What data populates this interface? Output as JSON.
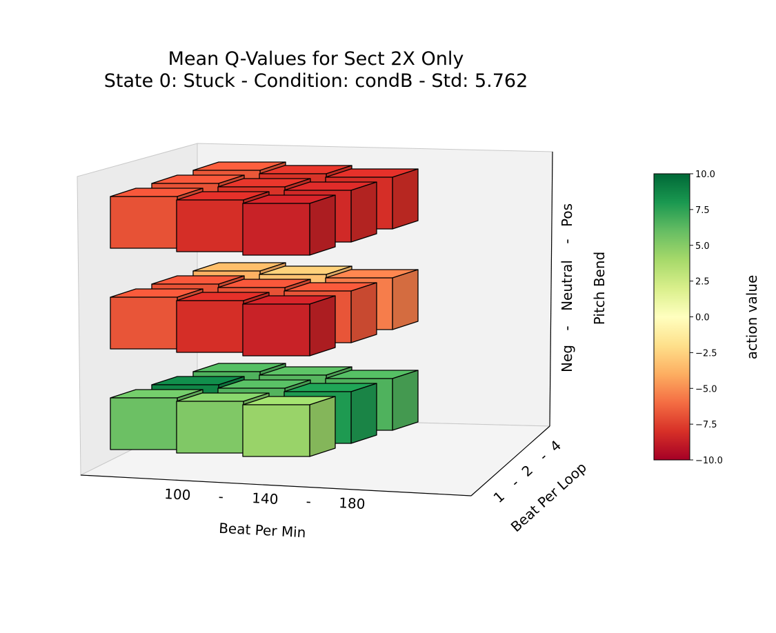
{
  "chart_data": {
    "type": "3d-bar-cube",
    "title": {
      "line1": "Mean Q-Values for Sect 2X Only",
      "line2": "State 0: Stuck  -  Condition: condB  -  Std: 5.762"
    },
    "x_axis": {
      "label": "Beat Per Min",
      "ticks": [
        "100",
        "-",
        "140",
        "-",
        "180"
      ],
      "categories": [
        "100",
        "140",
        "180"
      ]
    },
    "y_axis": {
      "label": "Beat Per Loop",
      "ticks": [
        "1",
        "-",
        "2",
        "-",
        "4"
      ],
      "categories": [
        "1",
        "2",
        "4"
      ]
    },
    "z_axis": {
      "label": "Pitch Bend",
      "ticks": [
        "Neg",
        "-",
        "Neutral",
        "-",
        "Pos"
      ],
      "categories": [
        "Neg",
        "Neutral",
        "Pos"
      ]
    },
    "colorbar": {
      "label": "action value",
      "range": [
        -10,
        10
      ],
      "ticks": [
        "10.0",
        "7.5",
        "5.0",
        "2.5",
        "0.0",
        "−2.5",
        "−5.0",
        "−7.5",
        "−10.0"
      ],
      "colormap": "RdYlGn"
    },
    "values": [
      {
        "bpm": "100",
        "loop": "1",
        "pitch": "Neg",
        "value": 5.8
      },
      {
        "bpm": "100",
        "loop": "2",
        "pitch": "Neg",
        "value": 8.8
      },
      {
        "bpm": "100",
        "loop": "4",
        "pitch": "Neg",
        "value": 6.6
      },
      {
        "bpm": "140",
        "loop": "1",
        "pitch": "Neg",
        "value": 5.2
      },
      {
        "bpm": "140",
        "loop": "2",
        "pitch": "Neg",
        "value": 6.5
      },
      {
        "bpm": "140",
        "loop": "4",
        "pitch": "Neg",
        "value": 6.4
      },
      {
        "bpm": "180",
        "loop": "1",
        "pitch": "Neg",
        "value": 4.4
      },
      {
        "bpm": "180",
        "loop": "2",
        "pitch": "Neg",
        "value": 7.9
      },
      {
        "bpm": "180",
        "loop": "4",
        "pitch": "Neg",
        "value": 6.6
      },
      {
        "bpm": "100",
        "loop": "1",
        "pitch": "Neutral",
        "value": -6.8
      },
      {
        "bpm": "100",
        "loop": "2",
        "pitch": "Neutral",
        "value": -6.9
      },
      {
        "bpm": "100",
        "loop": "4",
        "pitch": "Neutral",
        "value": -3.9
      },
      {
        "bpm": "140",
        "loop": "1",
        "pitch": "Neutral",
        "value": -8.1
      },
      {
        "bpm": "140",
        "loop": "2",
        "pitch": "Neutral",
        "value": -6.9
      },
      {
        "bpm": "140",
        "loop": "4",
        "pitch": "Neutral",
        "value": -3.2
      },
      {
        "bpm": "180",
        "loop": "1",
        "pitch": "Neutral",
        "value": -8.6
      },
      {
        "bpm": "180",
        "loop": "2",
        "pitch": "Neutral",
        "value": -6.8
      },
      {
        "bpm": "180",
        "loop": "4",
        "pitch": "Neutral",
        "value": -5.5
      },
      {
        "bpm": "100",
        "loop": "1",
        "pitch": "Pos",
        "value": -6.9
      },
      {
        "bpm": "100",
        "loop": "2",
        "pitch": "Pos",
        "value": -6.9
      },
      {
        "bpm": "100",
        "loop": "4",
        "pitch": "Pos",
        "value": -6.7
      },
      {
        "bpm": "140",
        "loop": "1",
        "pitch": "Pos",
        "value": -8.1
      },
      {
        "bpm": "140",
        "loop": "2",
        "pitch": "Pos",
        "value": -7.9
      },
      {
        "bpm": "140",
        "loop": "4",
        "pitch": "Pos",
        "value": -7.9
      },
      {
        "bpm": "180",
        "loop": "1",
        "pitch": "Pos",
        "value": -8.6
      },
      {
        "bpm": "180",
        "loop": "2",
        "pitch": "Pos",
        "value": -8.3
      },
      {
        "bpm": "180",
        "loop": "4",
        "pitch": "Pos",
        "value": -8.1
      }
    ],
    "pane_color": "#f2f2f2",
    "edge_color": "#000000"
  }
}
